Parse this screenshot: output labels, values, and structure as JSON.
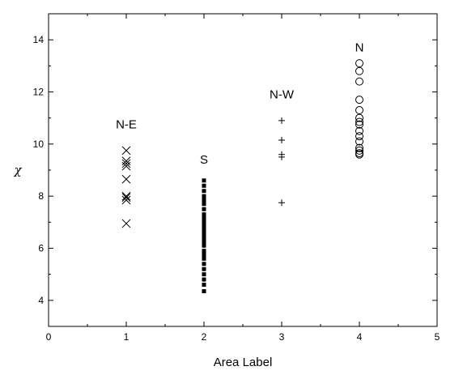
{
  "chart_data": {
    "type": "scatter",
    "xlabel": "Area Label",
    "ylabel": "χ",
    "xlim": [
      0,
      5
    ],
    "ylim": [
      3,
      15
    ],
    "xticks": [
      0,
      1,
      2,
      3,
      4,
      5
    ],
    "yticks": [
      4,
      6,
      8,
      10,
      12,
      14
    ],
    "grid": false,
    "series": [
      {
        "name": "N-E",
        "marker": "x",
        "x": [
          1,
          1,
          1,
          1,
          1,
          1,
          1,
          1,
          1
        ],
        "y": [
          9.75,
          9.35,
          9.25,
          9.15,
          8.65,
          8.0,
          7.95,
          7.85,
          6.95
        ]
      },
      {
        "name": "S",
        "marker": "square",
        "x": [
          2,
          2,
          2,
          2,
          2,
          2,
          2,
          2,
          2,
          2,
          2,
          2,
          2,
          2,
          2,
          2,
          2,
          2,
          2,
          2,
          2,
          2,
          2,
          2,
          2,
          2,
          2,
          2
        ],
        "y": [
          8.6,
          8.4,
          8.2,
          8.0,
          7.85,
          7.7,
          7.5,
          7.3,
          7.15,
          7.0,
          6.9,
          6.8,
          6.7,
          6.6,
          6.5,
          6.4,
          6.3,
          6.2,
          6.1,
          5.9,
          5.75,
          5.6,
          5.4,
          5.2,
          5.0,
          4.8,
          4.6,
          4.35
        ]
      },
      {
        "name": "N-W",
        "marker": "+",
        "x": [
          3,
          3,
          3,
          3,
          3
        ],
        "y": [
          10.9,
          10.15,
          9.6,
          9.5,
          7.75
        ]
      },
      {
        "name": "N",
        "marker": "circle",
        "x": [
          4,
          4,
          4,
          4,
          4,
          4,
          4,
          4,
          4,
          4,
          4,
          4,
          4,
          4,
          4
        ],
        "y": [
          13.1,
          12.8,
          12.4,
          11.7,
          11.3,
          11.0,
          10.85,
          10.75,
          10.5,
          10.3,
          10.1,
          9.85,
          9.75,
          9.65,
          9.6
        ]
      }
    ],
    "annotations": [
      {
        "text": "N-E",
        "x": 1.0,
        "y": 10.6
      },
      {
        "text": "S",
        "x": 2.0,
        "y": 9.25
      },
      {
        "text": "N-W",
        "x": 3.0,
        "y": 11.75
      },
      {
        "text": "N",
        "x": 4.0,
        "y": 13.55
      }
    ]
  }
}
